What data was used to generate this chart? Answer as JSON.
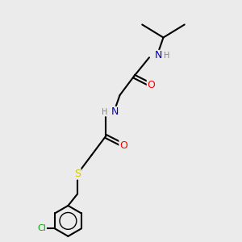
{
  "background_color": "#ebebeb",
  "bond_color": "#000000",
  "atom_colors": {
    "O": "#ff0000",
    "N": "#0000cc",
    "S": "#cccc00",
    "Cl": "#00aa00",
    "H": "#808080"
  }
}
